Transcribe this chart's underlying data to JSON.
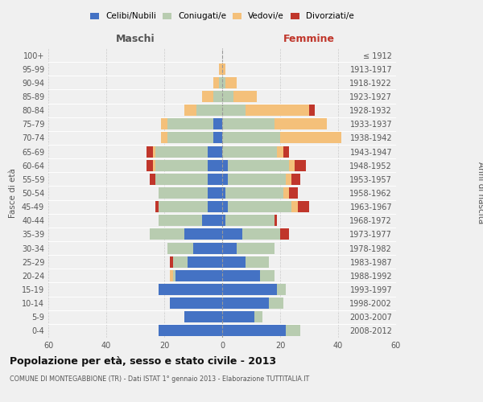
{
  "age_groups": [
    "100+",
    "95-99",
    "90-94",
    "85-89",
    "80-84",
    "75-79",
    "70-74",
    "65-69",
    "60-64",
    "55-59",
    "50-54",
    "45-49",
    "40-44",
    "35-39",
    "30-34",
    "25-29",
    "20-24",
    "15-19",
    "10-14",
    "5-9",
    "0-4"
  ],
  "birth_years": [
    "≤ 1912",
    "1913-1917",
    "1918-1922",
    "1923-1927",
    "1928-1932",
    "1933-1937",
    "1938-1942",
    "1943-1947",
    "1948-1952",
    "1953-1957",
    "1958-1962",
    "1963-1967",
    "1968-1972",
    "1973-1977",
    "1978-1982",
    "1983-1987",
    "1988-1992",
    "1993-1997",
    "1998-2002",
    "2003-2007",
    "2008-2012"
  ],
  "males": {
    "celibi": [
      0,
      0,
      0,
      0,
      0,
      3,
      3,
      5,
      5,
      5,
      5,
      5,
      7,
      13,
      10,
      12,
      16,
      22,
      18,
      13,
      22
    ],
    "coniugati": [
      0,
      0,
      1,
      3,
      9,
      16,
      16,
      18,
      18,
      18,
      17,
      17,
      15,
      12,
      9,
      5,
      1,
      0,
      0,
      0,
      0
    ],
    "vedovi": [
      0,
      1,
      2,
      4,
      4,
      2,
      2,
      1,
      1,
      0,
      0,
      0,
      0,
      0,
      0,
      0,
      1,
      0,
      0,
      0,
      0
    ],
    "divorziati": [
      0,
      0,
      0,
      0,
      0,
      0,
      0,
      2,
      2,
      2,
      0,
      1,
      0,
      0,
      0,
      1,
      0,
      0,
      0,
      0,
      0
    ]
  },
  "females": {
    "nubili": [
      0,
      0,
      0,
      0,
      0,
      0,
      0,
      0,
      2,
      2,
      1,
      2,
      1,
      7,
      5,
      8,
      13,
      19,
      16,
      11,
      22
    ],
    "coniugate": [
      0,
      0,
      1,
      4,
      8,
      18,
      20,
      19,
      21,
      20,
      20,
      22,
      17,
      13,
      13,
      8,
      5,
      3,
      5,
      3,
      5
    ],
    "vedove": [
      0,
      1,
      4,
      8,
      22,
      18,
      21,
      2,
      2,
      2,
      2,
      2,
      0,
      0,
      0,
      0,
      0,
      0,
      0,
      0,
      0
    ],
    "divorziate": [
      0,
      0,
      0,
      0,
      2,
      0,
      0,
      2,
      4,
      3,
      3,
      4,
      1,
      3,
      0,
      0,
      0,
      0,
      0,
      0,
      0
    ]
  },
  "color_celibi": "#4472C4",
  "color_coniugati": "#B8CCB0",
  "color_vedovi": "#F4C07A",
  "color_divorziati": "#C0362B",
  "xlim": 60,
  "title_main": "Popolazione per età, sesso e stato civile - 2013",
  "title_sub": "COMUNE DI MONTEGABBIONE (TR) - Dati ISTAT 1° gennaio 2013 - Elaborazione TUTTITALIA.IT",
  "ylabel_left": "Fasce di età",
  "ylabel_right": "Anni di nascita",
  "xlabel_left": "Maschi",
  "xlabel_right": "Femmine",
  "bg_color": "#f0f0f0",
  "grid_color": "#cccccc"
}
